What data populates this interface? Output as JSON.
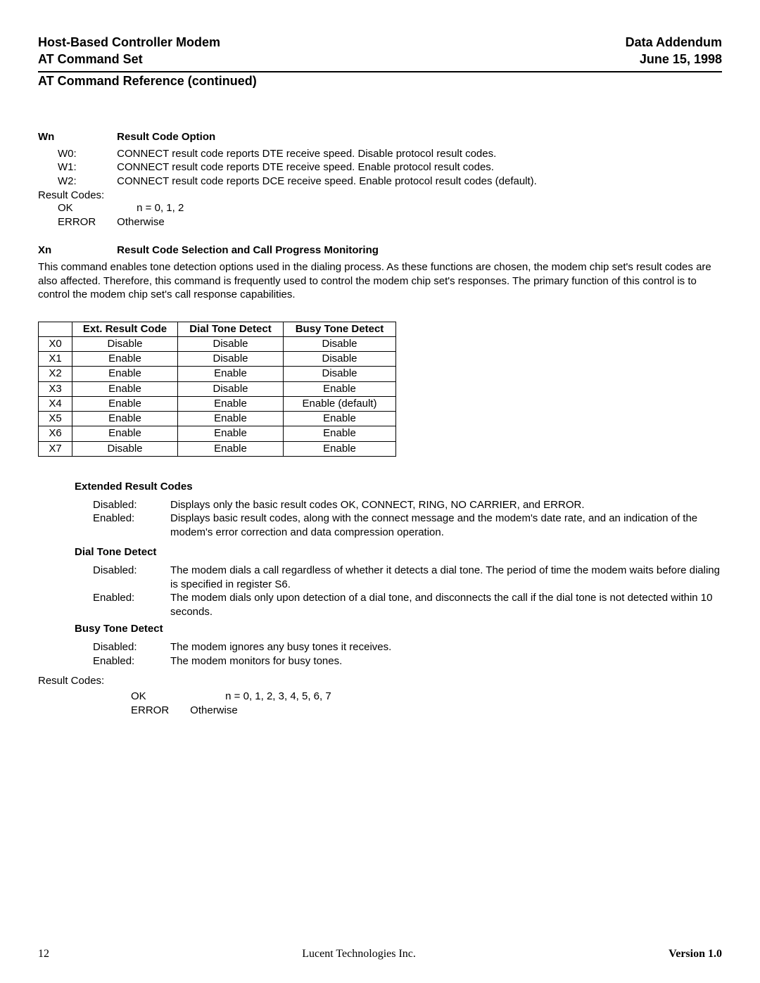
{
  "header": {
    "left1": "Host-Based Controller Modem",
    "right1": "Data Addendum",
    "left2": "AT Command Set",
    "right2": "June 15, 1998"
  },
  "section_title": "AT Command Reference (continued)",
  "wn": {
    "cmd": "Wn",
    "title": "Result Code Option",
    "options": [
      {
        "label": "W0:",
        "text": "CONNECT result code reports DTE receive speed. Disable protocol result codes."
      },
      {
        "label": "W1:",
        "text": "CONNECT result code reports DTE receive speed. Enable protocol result codes."
      },
      {
        "label": "W2:",
        "text": "CONNECT result code reports DCE receive speed. Enable protocol result codes (default)."
      }
    ],
    "result_codes_label": "Result Codes:",
    "result_codes": [
      {
        "label": "OK",
        "text": "n = 0, 1, 2"
      },
      {
        "label": "ERROR",
        "text": "Otherwise"
      }
    ]
  },
  "xn": {
    "cmd": "Xn",
    "title": "Result Code Selection and Call Progress Monitoring",
    "para": "This command enables tone detection options used in the dialing process.  As these functions are chosen, the modem chip set's result codes are also affected.  Therefore, this command is frequently used to control the modem chip set's responses.  The primary function of this control is to control the modem chip set's call response capabilities.",
    "table": {
      "headers": [
        "",
        "Ext. Result Code",
        "Dial Tone Detect",
        "Busy Tone Detect"
      ],
      "rows": [
        [
          "X0",
          "Disable",
          "Disable",
          "Disable"
        ],
        [
          "X1",
          "Enable",
          "Disable",
          "Disable"
        ],
        [
          "X2",
          "Enable",
          "Enable",
          "Disable"
        ],
        [
          "X3",
          "Enable",
          "Disable",
          "Enable"
        ],
        [
          "X4",
          "Enable",
          "Enable",
          "Enable (default)"
        ],
        [
          "X5",
          "Enable",
          "Enable",
          "Enable"
        ],
        [
          "X6",
          "Enable",
          "Enable",
          "Enable"
        ],
        [
          "X7",
          "Disable",
          "Enable",
          "Enable"
        ]
      ]
    },
    "ext_heading": "Extended Result Codes",
    "ext_defs": [
      {
        "label": "Disabled:",
        "text": "Displays only the basic result codes OK, CONNECT, RING, NO CARRIER, and ERROR."
      },
      {
        "label": "Enabled:",
        "text": "Displays basic result codes, along with the connect message and the modem's date rate, and an indication of the modem's error correction and data compression operation."
      }
    ],
    "dial_heading": "Dial Tone Detect",
    "dial_defs": [
      {
        "label": "Disabled:",
        "text": "The modem dials a call regardless of whether it detects a dial tone.  The period of time the modem waits before dialing is specified in register S6."
      },
      {
        "label": "Enabled:",
        "text": "The modem dials only upon detection of a dial tone, and disconnects the call if the dial tone is not detected within 10 seconds."
      }
    ],
    "busy_heading": "Busy Tone Detect",
    "busy_defs": [
      {
        "label": "Disabled:",
        "text": "The modem ignores any busy tones it receives."
      },
      {
        "label": "Enabled:",
        "text": "The modem monitors for busy tones."
      }
    ],
    "result_codes_label": "Result Codes:",
    "result_codes": [
      {
        "label": "OK",
        "text": "n = 0, 1, 2, 3, 4, 5, 6, 7"
      },
      {
        "label": "ERROR",
        "text": "Otherwise"
      }
    ]
  },
  "footer": {
    "page": "12",
    "company": "Lucent Technologies Inc.",
    "version": "Version 1.0"
  }
}
